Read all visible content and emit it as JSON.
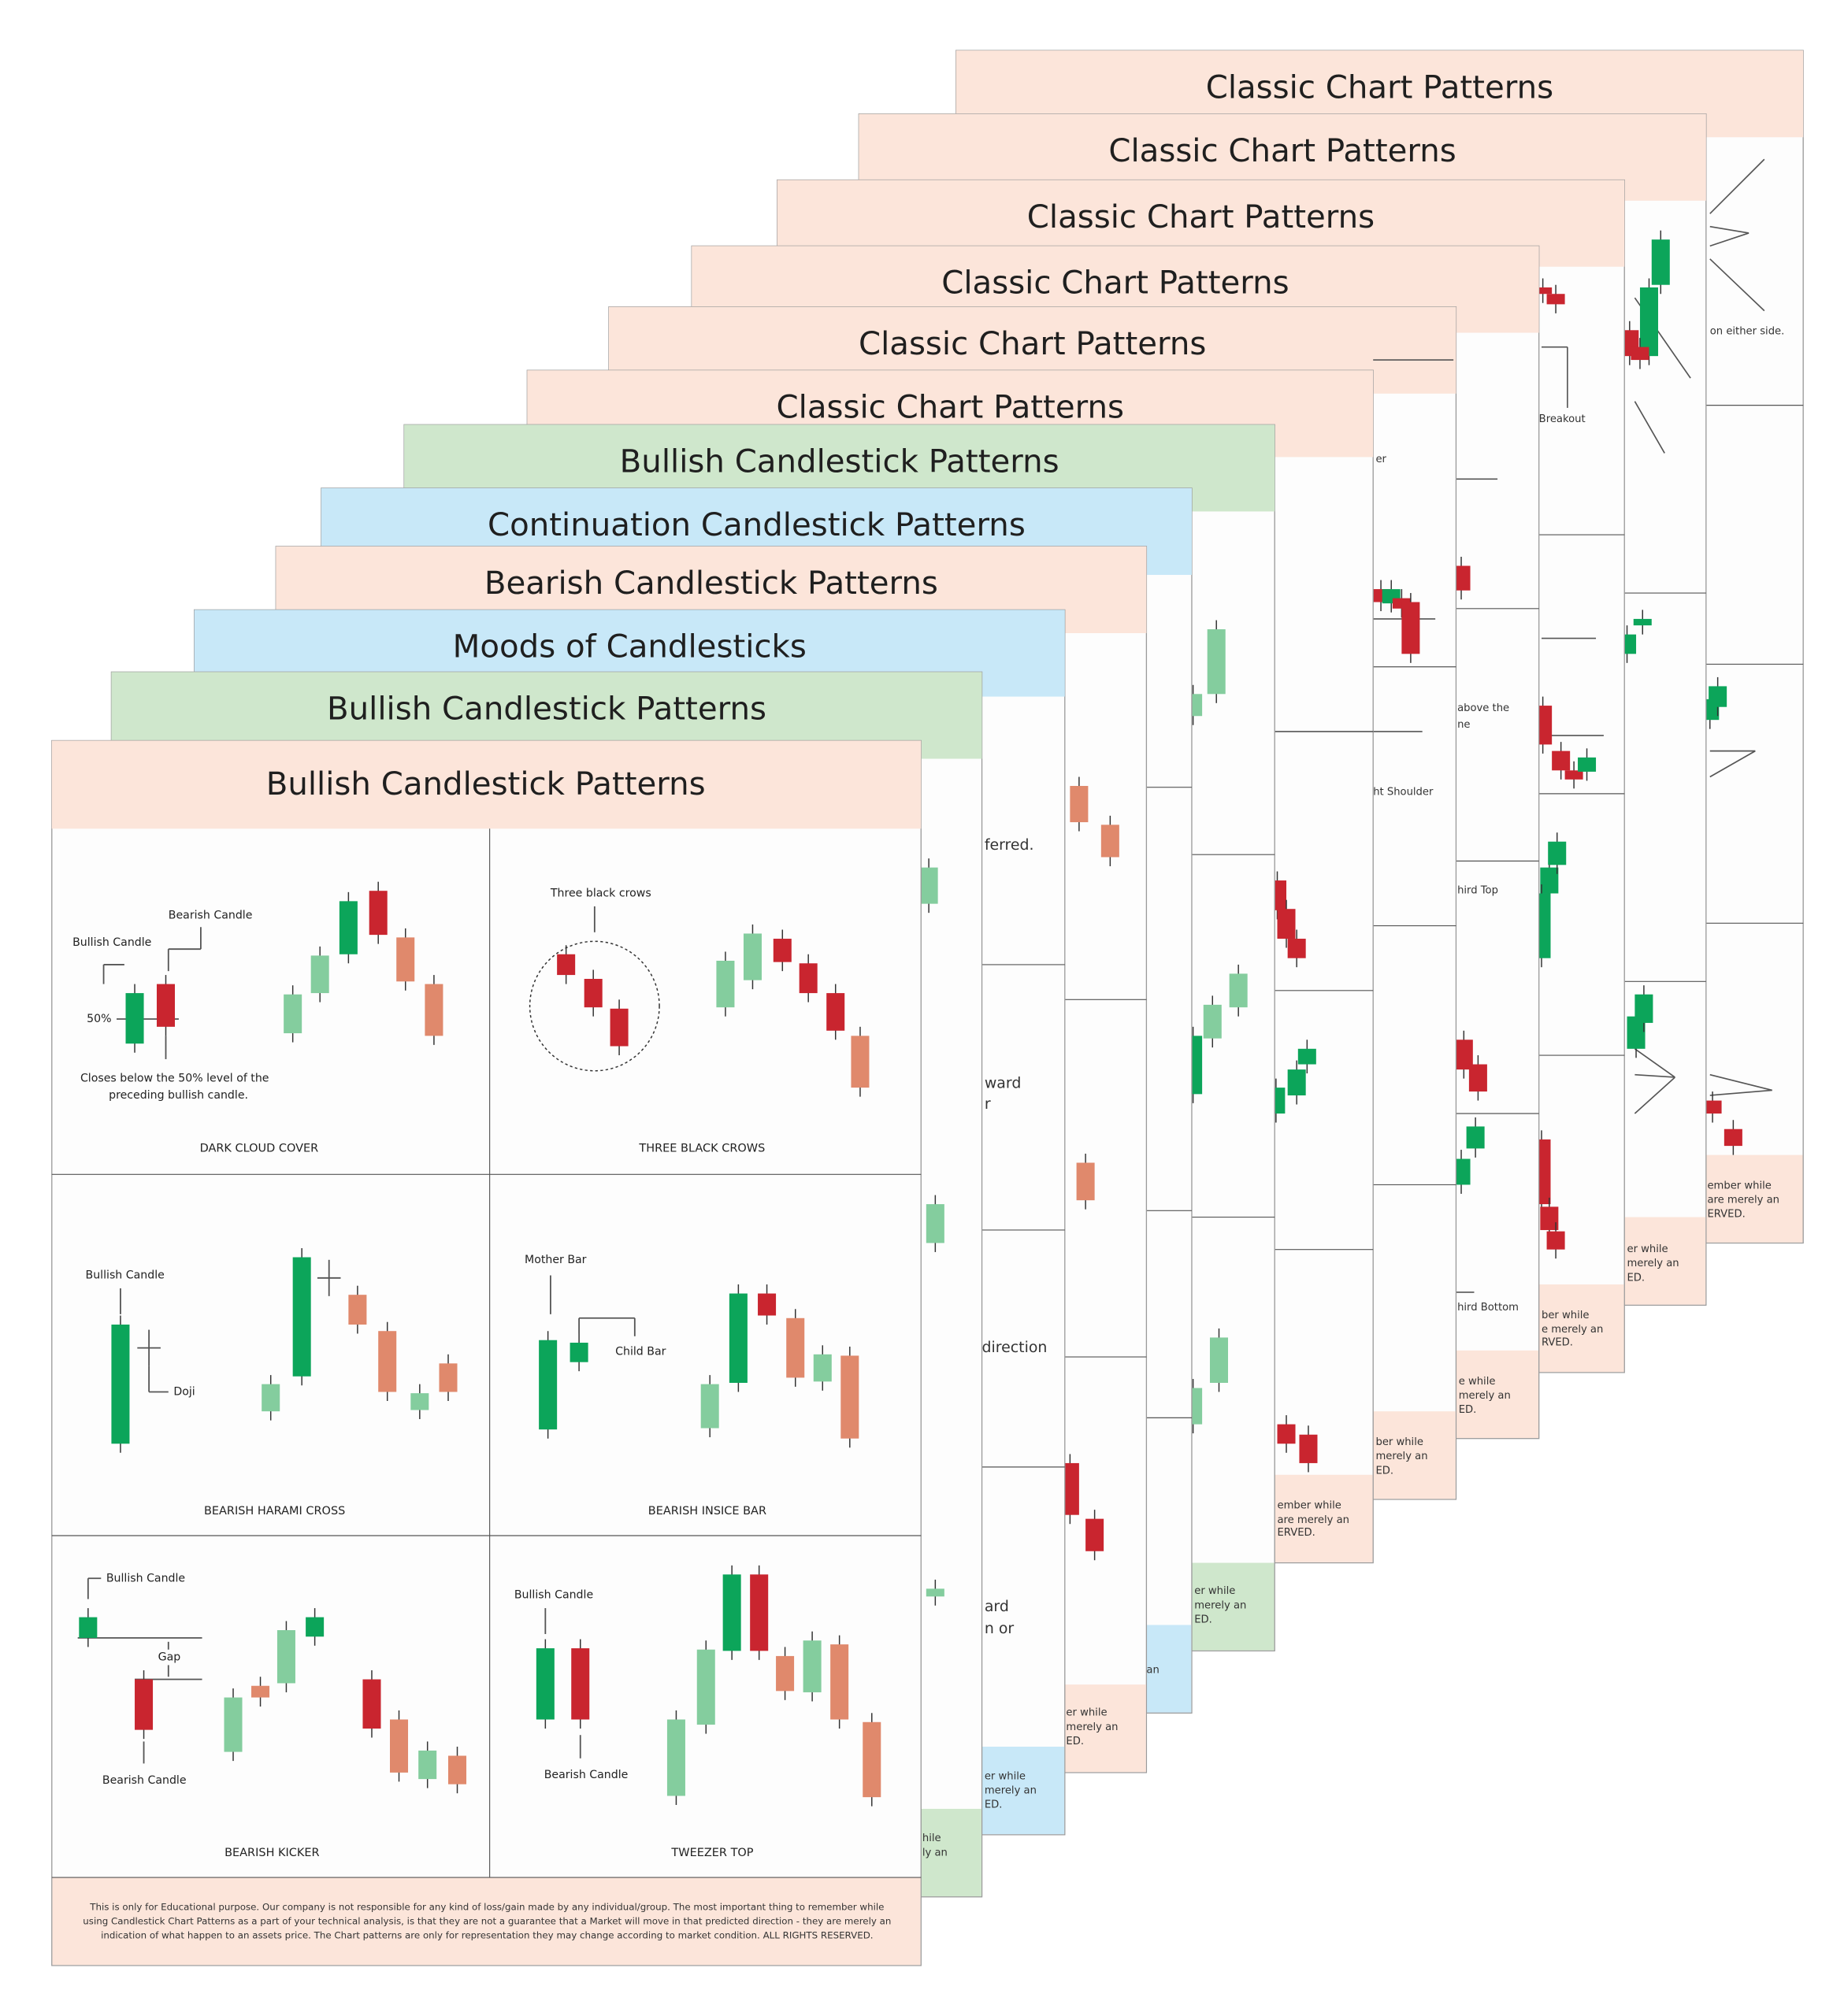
{
  "sheets": [
    {
      "title": "Classic Chart Patterns",
      "fragments": [
        "on either side.",
        "ember while",
        "are merely an",
        "ERVED."
      ]
    },
    {
      "title": "Classic Chart Patterns",
      "fragments": [
        "er while",
        "merely an",
        "ED."
      ]
    },
    {
      "title": "Classic Chart Patterns",
      "fragments": [
        "Breakout",
        "ber while",
        "e merely an",
        "RVED."
      ]
    },
    {
      "title": "Classic Chart Patterns",
      "fragments": [
        "above the",
        "ne",
        "hird Top",
        "hird Bottom",
        "e while",
        "merely an",
        "ED."
      ]
    },
    {
      "title": "Classic Chart Patterns",
      "fragments": [
        "er",
        "ht Shoulder",
        "ber while",
        "merely an",
        "ED."
      ]
    },
    {
      "title": "Classic Chart Patterns",
      "fragments": [
        "ember while",
        "are merely an",
        "ERVED."
      ]
    },
    {
      "title": "Bullish Candlestick Patterns",
      "fragments": [
        "er while",
        "merely an",
        "ED."
      ]
    },
    {
      "title": "Continuation Candlestick Patterns",
      "fragments": [
        "an"
      ]
    },
    {
      "title": "Bearish Candlestick Patterns",
      "fragments": [
        "er while",
        "merely an",
        "ED."
      ]
    },
    {
      "title": "Moods of Candlesticks",
      "fragments": [
        "ferred.",
        "ward",
        "r",
        "direction",
        "ard",
        "n or",
        "er while",
        "merely an",
        "ED."
      ]
    },
    {
      "title": "Bullish Candlestick Patterns",
      "fragments": [
        "hile",
        "ly an"
      ]
    }
  ],
  "front": {
    "title": "Bullish Candlestick Patterns",
    "panels": [
      {
        "caption": "DARK CLOUD COVER",
        "labels": [
          "Bullish Candle",
          "Bearish Candle",
          "50%",
          "Closes below the 50% level of the",
          "preceding bullish candle."
        ]
      },
      {
        "caption": "THREE BLACK CROWS",
        "labels": [
          "Three black crows"
        ]
      },
      {
        "caption": "BEARISH HARAMI CROSS",
        "labels": [
          "Bullish Candle",
          "Doji"
        ]
      },
      {
        "caption": "BEARISH INSICE BAR",
        "labels": [
          "Mother Bar",
          "Child Bar"
        ]
      },
      {
        "caption": "BEARISH KICKER",
        "labels": [
          "Bullish Candle",
          "Gap",
          "Bearish Candle"
        ]
      },
      {
        "caption": "TWEEZER TOP",
        "labels": [
          "Bullish Candle",
          "Bearish Candle"
        ]
      }
    ],
    "footer": [
      "This is only for Educational purpose. Our company is not responsible for any kind of loss/gain made by any individual/group. The most important thing to remember while",
      "using Candlestick Chart Patterns as a part of your technical analysis, is that they are not a guarantee that a Market will move in that predicted direction - they are merely an",
      "indication of what happen to an assets price. The Chart patterns are only for representation they may change according to market condition. ALL RIGHTS RESERVED."
    ]
  }
}
